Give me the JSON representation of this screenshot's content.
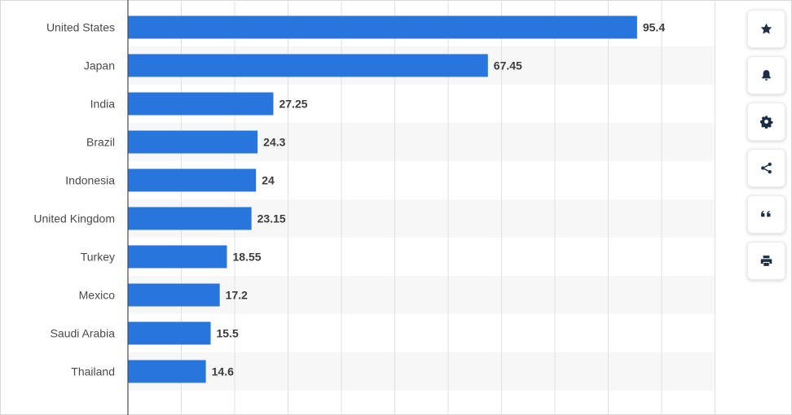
{
  "chart_data": {
    "type": "bar",
    "orientation": "horizontal",
    "categories": [
      "United States",
      "Japan",
      "India",
      "Brazil",
      "Indonesia",
      "United Kingdom",
      "Turkey",
      "Mexico",
      "Saudi Arabia",
      "Thailand"
    ],
    "values": [
      95.4,
      67.45,
      27.25,
      24.3,
      24,
      23.15,
      18.55,
      17.2,
      15.5,
      14.6
    ],
    "value_labels": [
      "95.4",
      "67.45",
      "27.25",
      "24.3",
      "24",
      "23.15",
      "18.55",
      "17.2",
      "15.5",
      "14.6"
    ],
    "xlim": [
      0,
      110
    ],
    "grid": true,
    "title": "",
    "xlabel": "",
    "ylabel": "",
    "bar_color": "#2876dd",
    "alt_row_color": "#f7f7f7",
    "grid_color": "#e1e1e1"
  },
  "toolbar": {
    "buttons": [
      {
        "name": "favorite-button",
        "icon": "star-icon"
      },
      {
        "name": "notification-button",
        "icon": "bell-icon"
      },
      {
        "name": "settings-button",
        "icon": "gear-icon"
      },
      {
        "name": "share-button",
        "icon": "share-icon"
      },
      {
        "name": "cite-button",
        "icon": "quote-icon"
      },
      {
        "name": "print-button",
        "icon": "print-icon"
      }
    ]
  }
}
